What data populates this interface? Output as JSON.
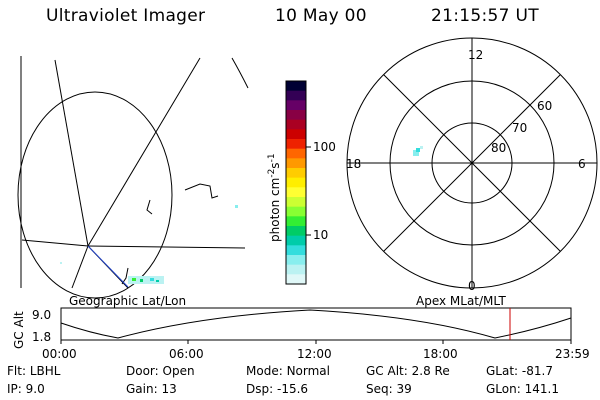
{
  "header": {
    "instrument": "Ultraviolet Imager",
    "date": "10 May 00",
    "time": "21:15:57 UT"
  },
  "left_map": {
    "caption": "Geographic Lat/Lon"
  },
  "right_map": {
    "caption": "Apex MLat/MLT",
    "mlt_labels": [
      "12",
      "18",
      "6",
      "0"
    ],
    "lat_labels": [
      "60",
      "70",
      "80"
    ]
  },
  "colorbar": {
    "unit_label": "photon cm",
    "unit_sup1": "-2",
    "unit_s": "s",
    "unit_sup2": "-1",
    "tick_labels": [
      "100",
      "10"
    ],
    "ticks_values": [
      100,
      10
    ],
    "colors": [
      "#000033",
      "#330055",
      "#660066",
      "#880044",
      "#aa0022",
      "#cc0000",
      "#ee2200",
      "#ff6600",
      "#ff9900",
      "#ffcc00",
      "#ffee00",
      "#ffff33",
      "#ccff33",
      "#88ff33",
      "#33ee33",
      "#00cc66",
      "#00ccaa",
      "#33dddd",
      "#88eeee",
      "#bbf2f2",
      "#e0f8f8"
    ]
  },
  "altitude_plot": {
    "ylabel": "GC Alt",
    "y_ticks": [
      "9.0",
      "1.8"
    ],
    "x_ticks": [
      "00:00",
      "06:00",
      "12:00",
      "18:00",
      "23:59"
    ],
    "current_time_color": "#cc0000"
  },
  "info": {
    "row1": [
      {
        "key": "Flt:",
        "value": "LBHL"
      },
      {
        "key": "Door:",
        "value": "Open"
      },
      {
        "key": "Mode:",
        "value": "Normal"
      },
      {
        "key": "GC Alt:",
        "value": "2.8 Re"
      },
      {
        "key": "GLat:",
        "value": "-81.7"
      }
    ],
    "row2": [
      {
        "key": "IP:",
        "value": "9.0"
      },
      {
        "key": "Gain:",
        "value": "13"
      },
      {
        "key": "Dsp:",
        "value": "-15.6"
      },
      {
        "key": "Seq:",
        "value": "39"
      },
      {
        "key": "GLon:",
        "value": "141.1"
      }
    ]
  }
}
